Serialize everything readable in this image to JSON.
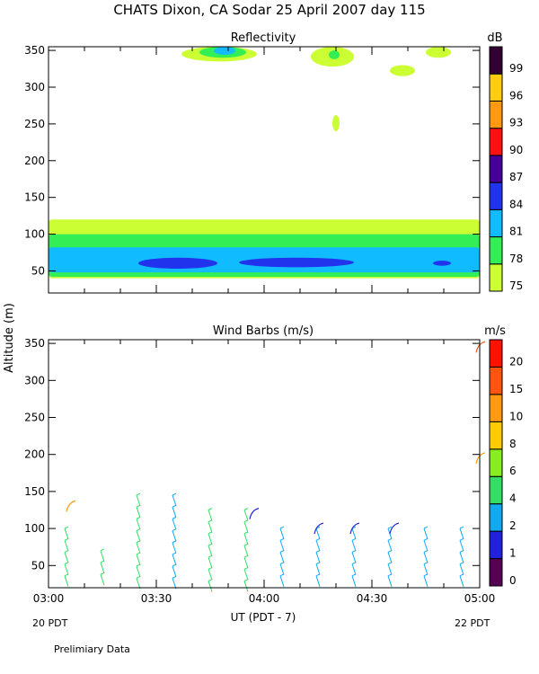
{
  "header": {
    "title": "CHATS Dixon, CA   Sodar   25 April 2007   day 115"
  },
  "footer": {
    "start_label": "20 PDT",
    "end_label": "22 PDT",
    "preliminary": "Prelimiary Data"
  },
  "chart_data": [
    {
      "type": "heatmap",
      "title": "Reflectivity",
      "ylabel": "Altitude (m)",
      "xlabel": "UT  (PDT - 7)",
      "x_ticks": [
        "03:00",
        "03:30",
        "04:00",
        "04:30",
        "05:00"
      ],
      "y_ticks": [
        50,
        100,
        150,
        200,
        250,
        300,
        350
      ],
      "xlim": [
        "03:00",
        "05:00"
      ],
      "ylim": [
        20,
        355
      ],
      "colorbar": {
        "unit": "dB",
        "levels": [
          75,
          78,
          81,
          84,
          87,
          90,
          93,
          96,
          99
        ],
        "colors": [
          "#ccff33",
          "#33ee55",
          "#11bbff",
          "#2233ee",
          "#440099",
          "#ff1111",
          "#ff9911",
          "#ffcc11",
          "#330033"
        ]
      },
      "regions": [
        {
          "level": 75,
          "time_start": "03:00",
          "time_end": "05:00",
          "alt_bottom": 40,
          "alt_top": 120
        },
        {
          "level": 78,
          "time_start": "03:00",
          "time_end": "05:00",
          "alt_bottom": 42,
          "alt_top": 100
        },
        {
          "level": 81,
          "time_start": "03:00",
          "time_end": "05:00",
          "alt_bottom": 48,
          "alt_top": 82
        },
        {
          "level": 84,
          "time_start": "03:25",
          "time_end": "03:47",
          "alt_bottom": 53,
          "alt_top": 68
        },
        {
          "level": 84,
          "time_start": "03:53",
          "time_end": "04:25",
          "alt_bottom": 55,
          "alt_top": 68
        },
        {
          "level": 84,
          "time_start": "04:47",
          "time_end": "04:52",
          "alt_bottom": 57,
          "alt_top": 64
        },
        {
          "level": 75,
          "time_start": "03:37",
          "time_end": "03:58",
          "alt_bottom": 335,
          "alt_top": 355
        },
        {
          "level": 78,
          "time_start": "03:42",
          "time_end": "03:55",
          "alt_bottom": 340,
          "alt_top": 355
        },
        {
          "level": 81,
          "time_start": "03:46",
          "time_end": "03:52",
          "alt_bottom": 344,
          "alt_top": 355
        },
        {
          "level": 75,
          "time_start": "04:13",
          "time_end": "04:25",
          "alt_bottom": 328,
          "alt_top": 355
        },
        {
          "level": 78,
          "time_start": "04:18",
          "time_end": "04:21",
          "alt_bottom": 338,
          "alt_top": 350
        },
        {
          "level": 75,
          "time_start": "04:19",
          "time_end": "04:21",
          "alt_bottom": 240,
          "alt_top": 262
        },
        {
          "level": 75,
          "time_start": "04:35",
          "time_end": "04:42",
          "alt_bottom": 315,
          "alt_top": 330
        },
        {
          "level": 75,
          "time_start": "04:45",
          "time_end": "04:52",
          "alt_bottom": 340,
          "alt_top": 355
        }
      ]
    },
    {
      "type": "scatter",
      "title": "Wind Barbs (m/s)",
      "ylabel": "Altitude (m)",
      "xlabel": "UT  (PDT - 7)",
      "x_ticks": [
        "03:00",
        "03:30",
        "04:00",
        "04:30",
        "05:00"
      ],
      "y_ticks": [
        50,
        100,
        150,
        200,
        250,
        300,
        350
      ],
      "xlim": [
        "03:00",
        "05:00"
      ],
      "ylim": [
        20,
        355
      ],
      "colorbar": {
        "unit": "m/s",
        "levels": [
          0,
          1,
          2,
          4,
          6,
          8,
          10,
          15,
          20
        ],
        "colors": [
          "#550055",
          "#2222dd",
          "#11aaee",
          "#33dd66",
          "#88ee22",
          "#ffcc00",
          "#ff9911",
          "#ff5511",
          "#ff1100"
        ]
      },
      "profiles": [
        {
          "time": "03:05",
          "top_alt": 100,
          "speed": 4
        },
        {
          "time": "03:15",
          "top_alt": 70,
          "speed": 4
        },
        {
          "time": "03:25",
          "top_alt": 145,
          "speed": 4
        },
        {
          "time": "03:35",
          "top_alt": 145,
          "speed": 3
        },
        {
          "time": "03:45",
          "top_alt": 125,
          "speed": 4
        },
        {
          "time": "03:55",
          "top_alt": 125,
          "speed": 4
        },
        {
          "time": "04:05",
          "top_alt": 100,
          "speed": 3
        },
        {
          "time": "04:15",
          "top_alt": 100,
          "speed": 3
        },
        {
          "time": "04:25",
          "top_alt": 100,
          "speed": 3
        },
        {
          "time": "04:35",
          "top_alt": 100,
          "speed": 3
        },
        {
          "time": "04:45",
          "top_alt": 100,
          "speed": 3
        },
        {
          "time": "04:55",
          "top_alt": 100,
          "speed": 3
        }
      ],
      "barbs": [
        {
          "time": "03:06",
          "alt": 130,
          "speed": 10
        },
        {
          "time": "05:00",
          "alt": 195,
          "speed": 10
        },
        {
          "time": "05:00",
          "alt": 345,
          "speed": 15
        },
        {
          "time": "03:57",
          "alt": 120,
          "speed": 1
        },
        {
          "time": "04:15",
          "alt": 100,
          "speed": 1
        },
        {
          "time": "04:25",
          "alt": 100,
          "speed": 1
        },
        {
          "time": "04:36",
          "alt": 100,
          "speed": 1
        }
      ]
    }
  ]
}
